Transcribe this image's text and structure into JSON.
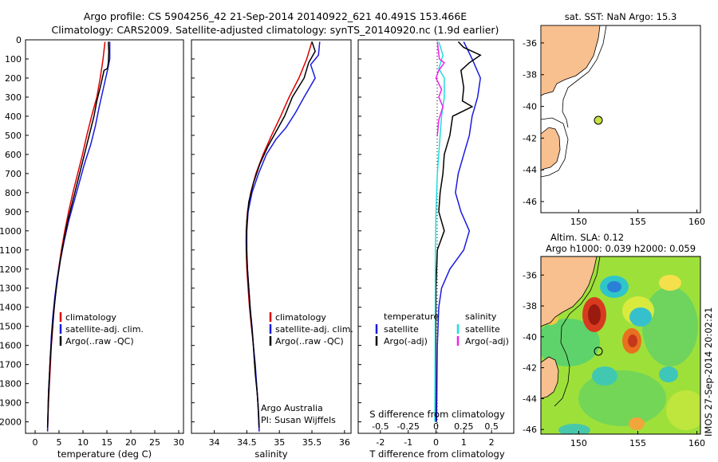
{
  "title": {
    "line1": "Argo profile: CS 5904256_42 21-Sep-2014 20140922_621 40.491S 153.466E",
    "line2": "Climatology: CARS2009. Satellite-adjusted climatology: synTS_20140920.nc (1.9d earlier)"
  },
  "depth_ticks": [
    "0",
    "100",
    "200",
    "300",
    "400",
    "500",
    "600",
    "700",
    "800",
    "900",
    "1000",
    "1100",
    "1200",
    "1300",
    "1400",
    "1500",
    "1600",
    "1700",
    "1800",
    "1900",
    "2000"
  ],
  "colors": {
    "climatology": "#dd0000",
    "satellite": "#1a1adf",
    "argo": "#000000",
    "sal_sat": "#22dddd",
    "sal_argo": "#ee22ee",
    "land": "#f8bf8f"
  },
  "footer": {
    "credit": "Argo Australia",
    "pi": "PI: Susan Wijffels",
    "imos": "IMOS 27-Sep-2014 20:02:21"
  },
  "map1": {
    "title": "sat. SST: NaN Argo: 15.3",
    "xticks": [
      "150",
      "155",
      "160"
    ],
    "yticks": [
      "-36",
      "-38",
      "-40",
      "-42",
      "-44",
      "-46"
    ]
  },
  "map2": {
    "title1": "Altim. SLA: 0.12",
    "title2": "Argo h1000: 0.039 h2000: 0.059",
    "xticks": [
      "150",
      "155",
      "160"
    ],
    "yticks": [
      "-36",
      "-38",
      "-40",
      "-42",
      "-44",
      "-46"
    ]
  },
  "chart_data": [
    {
      "type": "line",
      "title": "",
      "xlabel": "temperature (deg C)",
      "ylabel": "",
      "xlim": [
        -2,
        31
      ],
      "ylim": [
        2060,
        0
      ],
      "xticks": [
        "0",
        "5",
        "10",
        "15",
        "20",
        "25",
        "30"
      ],
      "legend": [
        "climatology",
        "satellite-adj. clim.",
        "Argo(..raw -QC)"
      ],
      "series": [
        {
          "name": "climatology",
          "color": "#dd0000",
          "points": [
            [
              14.6,
              10
            ],
            [
              14.2,
              100
            ],
            [
              13.6,
              200
            ],
            [
              12.9,
              300
            ],
            [
              11.8,
              400
            ],
            [
              10.8,
              500
            ],
            [
              9.9,
              600
            ],
            [
              8.9,
              700
            ],
            [
              7.9,
              800
            ],
            [
              7.0,
              900
            ],
            [
              6.2,
              1000
            ],
            [
              5.5,
              1100
            ],
            [
              4.9,
              1200
            ],
            [
              4.4,
              1300
            ],
            [
              4.0,
              1400
            ],
            [
              3.7,
              1500
            ],
            [
              3.4,
              1600
            ],
            [
              3.2,
              1700
            ],
            [
              3.0,
              1800
            ],
            [
              2.8,
              1900
            ],
            [
              2.6,
              2050
            ]
          ]
        },
        {
          "name": "satellite-adj. clim.",
          "color": "#1a1adf",
          "points": [
            [
              15.6,
              10
            ],
            [
              15.6,
              100
            ],
            [
              15.2,
              150
            ],
            [
              14.3,
              250
            ],
            [
              13.4,
              350
            ],
            [
              12.6,
              450
            ],
            [
              11.6,
              550
            ],
            [
              10.3,
              650
            ],
            [
              9.2,
              750
            ],
            [
              8.1,
              850
            ],
            [
              7.0,
              950
            ],
            [
              6.1,
              1050
            ],
            [
              5.3,
              1150
            ],
            [
              4.6,
              1250
            ],
            [
              4.1,
              1350
            ],
            [
              3.7,
              1450
            ],
            [
              3.4,
              1550
            ],
            [
              3.2,
              1650
            ],
            [
              3.0,
              1750
            ],
            [
              2.8,
              1850
            ],
            [
              2.6,
              2050
            ]
          ]
        },
        {
          "name": "Argo(..raw -QC)",
          "color": "#000000",
          "points": [
            [
              15.3,
              10
            ],
            [
              15.4,
              60
            ],
            [
              15.3,
              120
            ],
            [
              15.1,
              150
            ],
            [
              14.4,
              160
            ],
            [
              13.6,
              250
            ],
            [
              12.9,
              320
            ],
            [
              12.3,
              400
            ],
            [
              11.5,
              480
            ],
            [
              10.7,
              560
            ],
            [
              9.8,
              650
            ],
            [
              8.8,
              750
            ],
            [
              7.8,
              850
            ],
            [
              6.8,
              950
            ],
            [
              6.0,
              1050
            ],
            [
              5.3,
              1150
            ],
            [
              4.7,
              1250
            ],
            [
              4.2,
              1350
            ],
            [
              3.8,
              1450
            ],
            [
              3.5,
              1550
            ],
            [
              3.2,
              1650
            ],
            [
              3.0,
              1750
            ],
            [
              2.8,
              1850
            ],
            [
              2.7,
              1950
            ],
            [
              2.6,
              2030
            ]
          ]
        }
      ]
    },
    {
      "type": "line",
      "title": "",
      "xlabel": "salinity",
      "ylabel": "",
      "xlim": [
        33.65,
        36.1
      ],
      "ylim": [
        2060,
        0
      ],
      "xticks": [
        "34",
        "34.5",
        "35",
        "35.5",
        "36"
      ],
      "legend": [
        "climatology",
        "satellite-adj. clim.",
        "Argo(..raw -QC)"
      ],
      "series": [
        {
          "name": "climatology",
          "color": "#dd0000",
          "points": [
            [
              35.5,
              10
            ],
            [
              35.42,
              100
            ],
            [
              35.3,
              200
            ],
            [
              35.15,
              300
            ],
            [
              35.02,
              400
            ],
            [
              34.88,
              500
            ],
            [
              34.75,
              600
            ],
            [
              34.64,
              700
            ],
            [
              34.56,
              800
            ],
            [
              34.51,
              900
            ],
            [
              34.49,
              1000
            ],
            [
              34.49,
              1100
            ],
            [
              34.5,
              1200
            ],
            [
              34.52,
              1300
            ],
            [
              34.54,
              1400
            ],
            [
              34.57,
              1500
            ],
            [
              34.6,
              1600
            ],
            [
              34.62,
              1700
            ],
            [
              34.65,
              1800
            ],
            [
              34.67,
              1900
            ],
            [
              34.69,
              2050
            ]
          ]
        },
        {
          "name": "satellite-adj. clim.",
          "color": "#1a1adf",
          "points": [
            [
              35.62,
              10
            ],
            [
              35.6,
              80
            ],
            [
              35.48,
              130
            ],
            [
              35.55,
              200
            ],
            [
              35.38,
              300
            ],
            [
              35.25,
              380
            ],
            [
              35.1,
              460
            ],
            [
              34.95,
              520
            ],
            [
              34.8,
              600
            ],
            [
              34.68,
              700
            ],
            [
              34.58,
              800
            ],
            [
              34.52,
              900
            ],
            [
              34.5,
              1000
            ],
            [
              34.5,
              1100
            ],
            [
              34.51,
              1200
            ],
            [
              34.53,
              1300
            ],
            [
              34.55,
              1400
            ],
            [
              34.58,
              1500
            ],
            [
              34.6,
              1600
            ],
            [
              34.63,
              1700
            ],
            [
              34.65,
              1800
            ],
            [
              34.67,
              1900
            ],
            [
              34.69,
              2050
            ]
          ]
        },
        {
          "name": "Argo(..raw -QC)",
          "color": "#000000",
          "points": [
            [
              35.5,
              10
            ],
            [
              35.55,
              60
            ],
            [
              35.45,
              120
            ],
            [
              35.38,
              200
            ],
            [
              35.2,
              300
            ],
            [
              35.08,
              400
            ],
            [
              34.95,
              480
            ],
            [
              34.82,
              560
            ],
            [
              34.7,
              650
            ],
            [
              34.6,
              750
            ],
            [
              34.53,
              850
            ],
            [
              34.5,
              950
            ],
            [
              34.49,
              1050
            ],
            [
              34.5,
              1150
            ],
            [
              34.52,
              1250
            ],
            [
              34.54,
              1350
            ],
            [
              34.56,
              1450
            ],
            [
              34.59,
              1550
            ],
            [
              34.61,
              1650
            ],
            [
              34.63,
              1750
            ],
            [
              34.66,
              1850
            ],
            [
              34.68,
              1950
            ],
            [
              34.69,
              2030
            ]
          ]
        }
      ]
    },
    {
      "type": "line",
      "title": "",
      "xlabel": "T difference from climatology",
      "xlabel2": "S difference from climatology",
      "ylabel": "",
      "xlim": [
        -2.8,
        2.8
      ],
      "ylim": [
        2060,
        0
      ],
      "xticks": [
        "-2",
        "-1",
        "0",
        "1",
        "2"
      ],
      "xticks_top": [
        "-0.5",
        "-0.25",
        "0",
        "0.25",
        "0.5"
      ],
      "legend_titles": [
        "temperature",
        "salinity"
      ],
      "legend": [
        "satellite",
        "Argo(-adj)",
        "satellite",
        "Argo(-adj)"
      ],
      "series": [
        {
          "name": "temperature satellite",
          "color": "#1a1adf",
          "points": [
            [
              1.0,
              10
            ],
            [
              1.3,
              100
            ],
            [
              1.6,
              200
            ],
            [
              1.5,
              300
            ],
            [
              1.3,
              400
            ],
            [
              1.2,
              500
            ],
            [
              1.0,
              600
            ],
            [
              0.8,
              700
            ],
            [
              0.7,
              800
            ],
            [
              0.9,
              900
            ],
            [
              1.2,
              1000
            ],
            [
              1.0,
              1100
            ],
            [
              0.5,
              1200
            ],
            [
              0.2,
              1300
            ],
            [
              0.1,
              1400
            ],
            [
              0.05,
              1600
            ],
            [
              0.02,
              2000
            ]
          ]
        },
        {
          "name": "temperature Argo(-adj)",
          "color": "#000000",
          "points": [
            [
              0.8,
              10
            ],
            [
              1.0,
              40
            ],
            [
              1.6,
              80
            ],
            [
              1.2,
              120
            ],
            [
              0.9,
              160
            ],
            [
              1.0,
              250
            ],
            [
              0.95,
              320
            ],
            [
              1.3,
              350
            ],
            [
              0.6,
              400
            ],
            [
              0.5,
              500
            ],
            [
              0.3,
              600
            ],
            [
              0.25,
              700
            ],
            [
              0.15,
              800
            ],
            [
              0.1,
              900
            ],
            [
              0.3,
              1000
            ],
            [
              0.05,
              1100
            ],
            [
              0.0,
              1300
            ],
            [
              -0.02,
              2000
            ]
          ]
        },
        {
          "name": "salinity satellite",
          "color": "#22dddd",
          "points": [
            [
              0.1,
              10
            ],
            [
              0.25,
              80
            ],
            [
              0.1,
              150
            ],
            [
              0.3,
              200
            ],
            [
              0.3,
              300
            ],
            [
              0.2,
              400
            ],
            [
              0.15,
              500
            ],
            [
              0.05,
              700
            ],
            [
              0.0,
              900
            ],
            [
              -0.02,
              1100
            ],
            [
              -0.03,
              1500
            ],
            [
              -0.04,
              2000
            ]
          ]
        },
        {
          "name": "salinity Argo(-adj)",
          "color": "#ee22ee",
          "points": [
            [
              0.05,
              10
            ],
            [
              0.12,
              100
            ],
            [
              0.3,
              120
            ],
            [
              0.1,
              160
            ],
            [
              0.0,
              200
            ],
            [
              0.2,
              260
            ],
            [
              0.1,
              300
            ],
            [
              0.25,
              350
            ],
            [
              0.1,
              420
            ],
            [
              0.05,
              500
            ]
          ]
        }
      ]
    }
  ]
}
